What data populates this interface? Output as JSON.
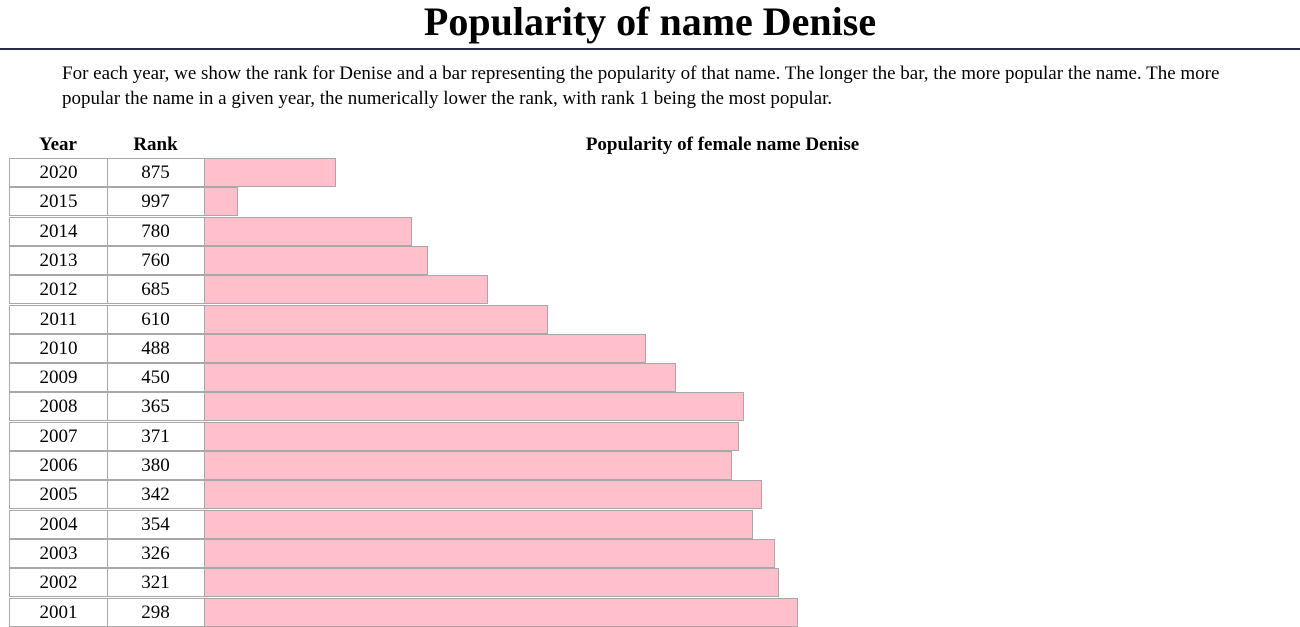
{
  "page": {
    "title": "Popularity of name Denise",
    "intro": "For each year, we show the rank for Denise and a bar representing the popularity of that name. The longer the bar, the more popular the name. The more popular the name in a given year, the numerically lower the rank, with rank 1 being the most popular."
  },
  "chart_data": {
    "type": "bar",
    "title": "Popularity of female name Denise",
    "columns": [
      "Year",
      "Rank"
    ],
    "bar_color": "#ffc0cb",
    "rank_max": 1000,
    "categories": [
      "2020",
      "2015",
      "2014",
      "2013",
      "2012",
      "2011",
      "2010",
      "2009",
      "2008",
      "2007",
      "2006",
      "2005",
      "2004",
      "2003",
      "2002",
      "2001"
    ],
    "values": [
      875,
      997,
      780,
      760,
      685,
      610,
      488,
      450,
      365,
      371,
      380,
      342,
      354,
      326,
      321,
      298
    ]
  }
}
